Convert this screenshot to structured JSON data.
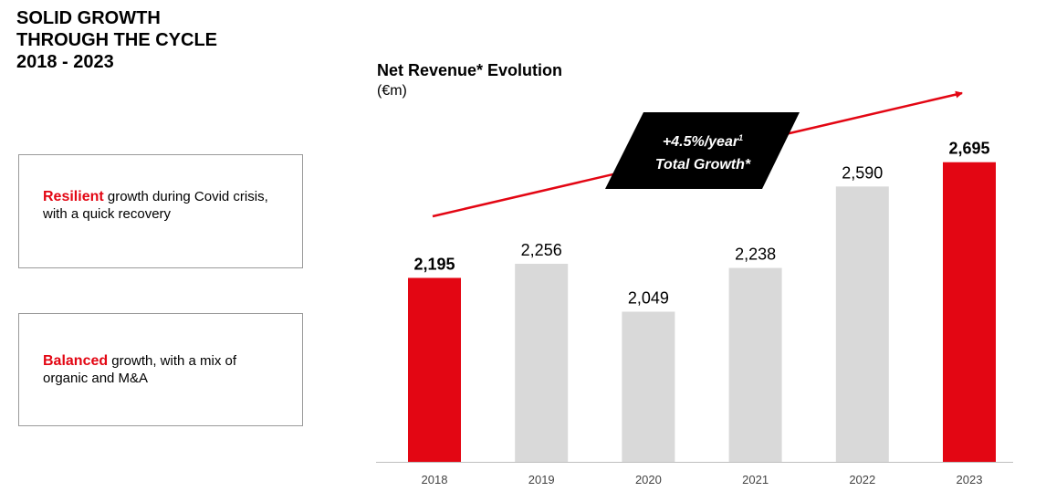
{
  "page": {
    "title_lines": [
      "SOLID GROWTH",
      "THROUGH THE CYCLE",
      "2018 - 2023"
    ]
  },
  "cards": [
    {
      "highlight": "Resilient",
      "text": " growth during Covid crisis, with a quick recovery"
    },
    {
      "highlight": "Balanced",
      "text": " growth, with a mix of organic and M&A"
    }
  ],
  "chart_data": {
    "type": "bar",
    "title": "Net Revenue* Evolution",
    "subtitle": "(€m)",
    "categories": [
      "2018",
      "2019",
      "2020",
      "2021",
      "2022",
      "2023"
    ],
    "values": [
      2195,
      2256,
      2049,
      2238,
      2590,
      2695
    ],
    "value_labels": [
      "2,195",
      "2,256",
      "2,049",
      "2,238",
      "2,590",
      "2,695"
    ],
    "highlighted": [
      true,
      false,
      false,
      false,
      false,
      true
    ],
    "ylim": [
      1400,
      2800
    ],
    "annotation": {
      "line1": "+4.5%/year",
      "superscript": "1",
      "line2": "Total Growth*"
    },
    "colors": {
      "highlight": "#e30613",
      "normal": "#d9d9d9",
      "axis": "#bfbfbf",
      "trend": "#e30613",
      "badge": "#000000"
    }
  }
}
